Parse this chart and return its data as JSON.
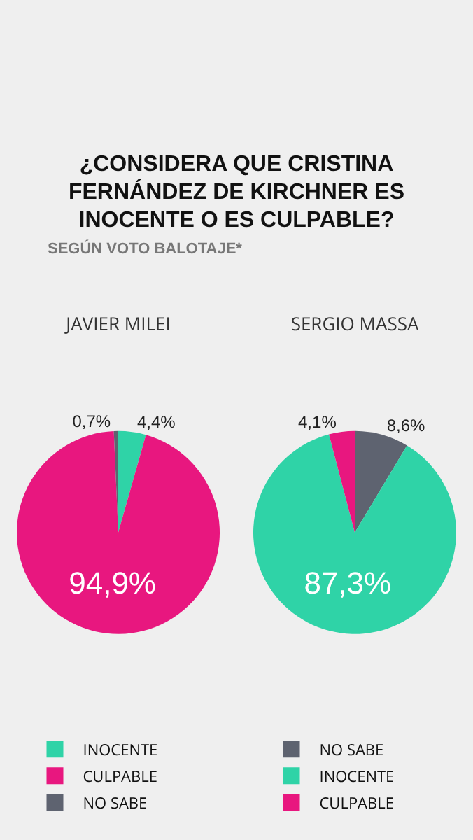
{
  "chart_data": [
    {
      "type": "other",
      "title": "¿CONSIDERA QUE CRISTINA FERNÁNDEZ DE KIRCHNER ES INOCENTE O ES CULPABLE?",
      "subtitle": "SEGÚN VOTO BALOTAJE*"
    },
    {
      "type": "pie",
      "title": "JAVIER MILEI",
      "categories": [
        "INOCENTE",
        "CULPABLE",
        "NO SABE"
      ],
      "values": [
        4.4,
        94.9,
        0.7
      ],
      "colors": [
        "#2fd3a7",
        "#e8177f",
        "#5e6370"
      ],
      "value_labels": [
        "4,4%",
        "94,9%",
        "0,7%"
      ],
      "legend": "bottom"
    },
    {
      "type": "pie",
      "title": "SERGIO MASSA",
      "categories": [
        "NO SABE",
        "INOCENTE",
        "CULPABLE"
      ],
      "values": [
        8.6,
        87.3,
        4.1
      ],
      "colors": [
        "#5e6370",
        "#2fd3a7",
        "#e8177f"
      ],
      "value_labels": [
        "8,6%",
        "87,3%",
        "4,1%"
      ],
      "legend": "bottom"
    }
  ]
}
